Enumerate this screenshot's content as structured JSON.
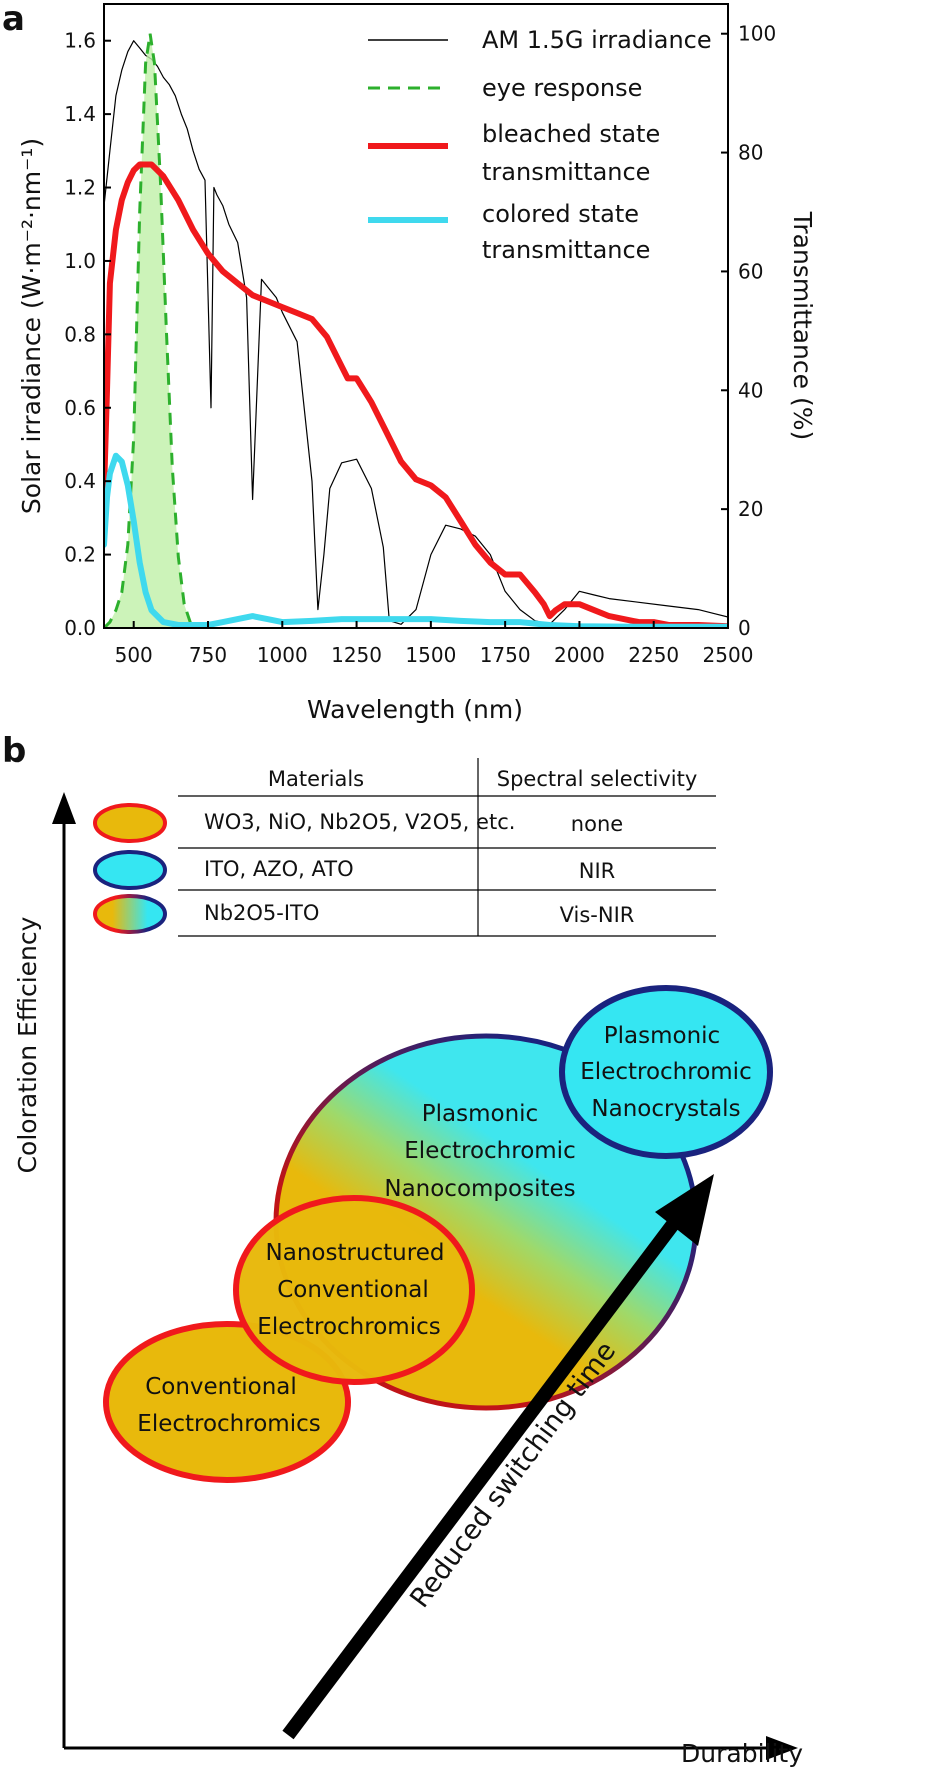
{
  "panel_a": {
    "label": "a",
    "chart_data": {
      "type": "line",
      "title": "",
      "xlabel": "Wavelength (nm)",
      "ylabel_left": "Solar irradiance (W·m⁻²·nm⁻¹)",
      "ylabel_right": "Transmittance (%)",
      "xlim": [
        400,
        2500
      ],
      "ylim_left": [
        0,
        1.7
      ],
      "ylim_right": [
        0,
        105
      ],
      "x_ticks": [
        500,
        750,
        1000,
        1250,
        1500,
        1750,
        2000,
        2250,
        2500
      ],
      "y_left_ticks": [
        "0.0",
        "0.2",
        "0.4",
        "0.6",
        "0.8",
        "1.0",
        "1.2",
        "1.4",
        "1.6"
      ],
      "y_right_ticks": [
        "0",
        "20",
        "40",
        "60",
        "80",
        "100"
      ],
      "series": [
        {
          "name": "AM 1.5G irradiance",
          "axis": "left",
          "color": "#000000",
          "style": "solid-thin",
          "x": [
            400,
            420,
            440,
            460,
            480,
            500,
            520,
            540,
            560,
            580,
            600,
            620,
            640,
            660,
            680,
            700,
            720,
            740,
            760,
            770,
            780,
            800,
            820,
            850,
            880,
            900,
            930,
            950,
            980,
            1000,
            1050,
            1100,
            1120,
            1140,
            1160,
            1200,
            1250,
            1300,
            1340,
            1360,
            1400,
            1450,
            1500,
            1550,
            1600,
            1650,
            1700,
            1750,
            1800,
            1850,
            1900,
            1950,
            2000,
            2050,
            2100,
            2200,
            2300,
            2400,
            2450,
            2500
          ],
          "y": [
            1.15,
            1.3,
            1.45,
            1.52,
            1.57,
            1.6,
            1.58,
            1.56,
            1.55,
            1.53,
            1.5,
            1.48,
            1.45,
            1.4,
            1.36,
            1.3,
            1.25,
            1.22,
            0.6,
            1.2,
            1.18,
            1.15,
            1.1,
            1.05,
            0.9,
            0.35,
            0.95,
            0.93,
            0.9,
            0.86,
            0.78,
            0.4,
            0.05,
            0.2,
            0.38,
            0.45,
            0.46,
            0.38,
            0.22,
            0.02,
            0.01,
            0.05,
            0.2,
            0.28,
            0.27,
            0.25,
            0.2,
            0.1,
            0.05,
            0.02,
            0.01,
            0.05,
            0.1,
            0.09,
            0.08,
            0.07,
            0.06,
            0.05,
            0.04,
            0.03
          ]
        },
        {
          "name": "eye response",
          "axis": "right",
          "color": "#2db02d",
          "style": "dashed-filled",
          "x": [
            400,
            420,
            440,
            460,
            480,
            500,
            520,
            540,
            555,
            570,
            590,
            610,
            630,
            650,
            670,
            690,
            700
          ],
          "y": [
            0,
            1,
            3,
            6,
            14,
            32,
            70,
            95,
            100,
            95,
            75,
            50,
            27,
            12,
            4,
            1,
            0
          ]
        },
        {
          "name": "bleached state transmittance",
          "axis": "right",
          "color": "#f0191c",
          "style": "solid-thick",
          "x": [
            400,
            410,
            420,
            440,
            460,
            480,
            500,
            520,
            540,
            560,
            580,
            600,
            650,
            700,
            750,
            800,
            850,
            900,
            950,
            1000,
            1050,
            1100,
            1150,
            1200,
            1220,
            1250,
            1300,
            1350,
            1400,
            1450,
            1500,
            1550,
            1600,
            1650,
            1700,
            1750,
            1800,
            1850,
            1880,
            1900,
            1920,
            1950,
            2000,
            2050,
            2100,
            2200,
            2250,
            2300,
            2400,
            2500
          ],
          "y": [
            23,
            40,
            58,
            67,
            72,
            75,
            77,
            78,
            78,
            78,
            77,
            76,
            72,
            67,
            63,
            60,
            58,
            56,
            55,
            54,
            53,
            52,
            49,
            44,
            42,
            42,
            38,
            33,
            28,
            25,
            24,
            22,
            18,
            14,
            11,
            9,
            9,
            6,
            4,
            2,
            3,
            4,
            4,
            3,
            2,
            1,
            1,
            0.5,
            0.5,
            0.3
          ]
        },
        {
          "name": "colored state transmittance",
          "axis": "right",
          "color": "#3fd9ee",
          "style": "solid-thick",
          "x": [
            400,
            410,
            420,
            440,
            460,
            480,
            500,
            520,
            540,
            560,
            600,
            650,
            700,
            750,
            800,
            850,
            900,
            950,
            1000,
            1100,
            1200,
            1300,
            1400,
            1500,
            1600,
            1700,
            1800,
            1900,
            2000,
            2200,
            2500
          ],
          "y": [
            14,
            22,
            26,
            29,
            28,
            24,
            18,
            11,
            6,
            3,
            1,
            0.5,
            0.5,
            0.5,
            1,
            1.5,
            2,
            1.5,
            1,
            1.2,
            1.5,
            1.5,
            1.5,
            1.5,
            1.2,
            1,
            1,
            0.5,
            0.3,
            0.2,
            0.2
          ]
        }
      ],
      "legend": [
        "AM 1.5G irradiance",
        "eye response",
        "bleached state transmittance",
        "colored state transmittance"
      ],
      "legend_placement": "top-right"
    },
    "legend_lines": {
      "am": "AM 1.5G irradiance",
      "eye": "eye response",
      "bleached_1": "bleached state",
      "bleached_2": "transmittance",
      "colored_1": "colored state",
      "colored_2": "transmittance"
    }
  },
  "panel_b": {
    "label": "b",
    "x_axis_label": "Durability",
    "y_axis_label": "Coloration Efficiency",
    "table": {
      "headers": [
        "Materials",
        "Spectral selectivity"
      ],
      "rows": [
        {
          "material": "WO3, NiO, Nb2O5, V2O5, etc.",
          "selectivity": "none",
          "marker": "yellow-red"
        },
        {
          "material": "ITO, AZO, ATO",
          "selectivity": "NIR",
          "marker": "cyan-blue"
        },
        {
          "material": "Nb2O5-ITO",
          "selectivity": "Vis-NIR",
          "marker": "gradient"
        }
      ]
    },
    "bubbles": {
      "conventional": [
        "Conventional",
        "Electrochromics"
      ],
      "nanostructured": [
        "Nanostructured",
        "Conventional",
        "Electrochromics"
      ],
      "nanocomposites": [
        "Plasmonic",
        "Electrochromic",
        "Nanocomposites"
      ],
      "nanocrystals": [
        "Plasmonic",
        "Electrochromic",
        "Nanocrystals"
      ]
    },
    "arrow_label": "Reduced switching time",
    "colors": {
      "yellow": "#e8b90c",
      "red": "#f0191c",
      "cyan": "#35e6f2",
      "navy": "#1a237e"
    }
  }
}
